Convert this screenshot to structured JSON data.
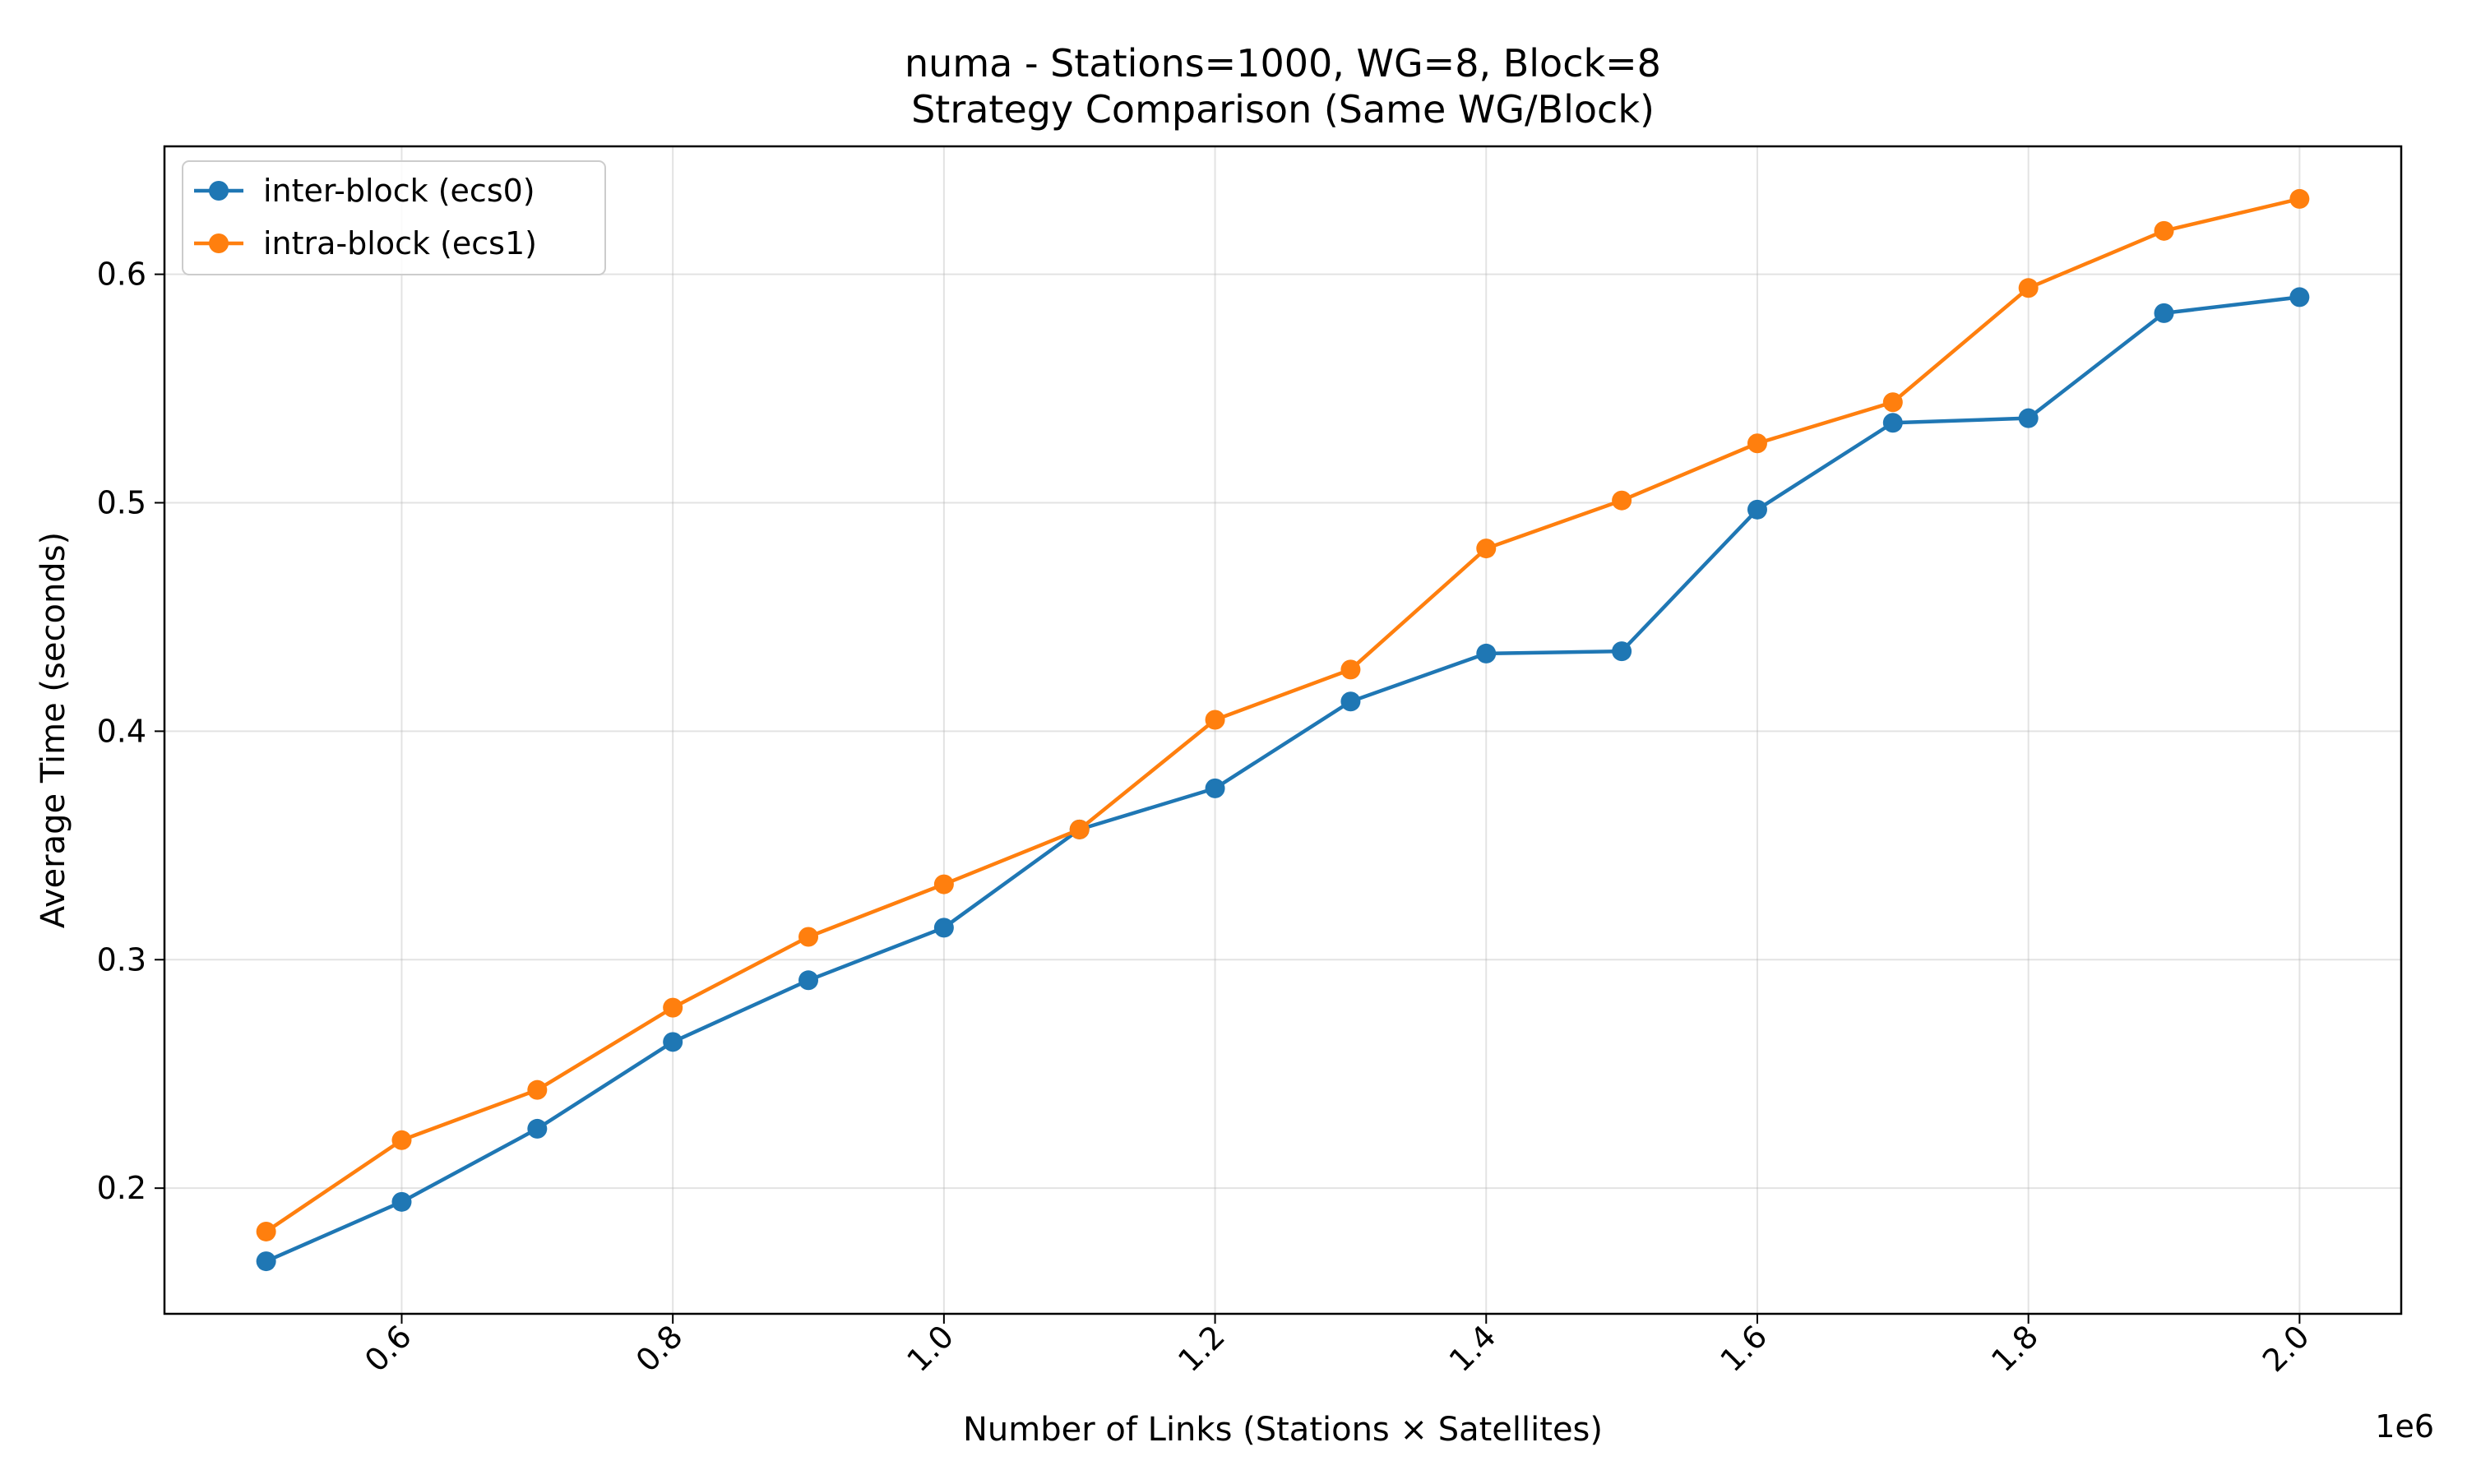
{
  "chart_data": {
    "type": "line",
    "title": "numa - Stations=1000, WG=8, Block=8",
    "subtitle": "Strategy Comparison (Same WG/Block)",
    "xlabel": "Number of Links (Stations × Satellites)",
    "ylabel": "Average Time (seconds)",
    "x_offset_text": "1e6",
    "xlim": [
      0.425,
      2.075
    ],
    "ylim": [
      0.145,
      0.656
    ],
    "x_ticks": [
      0.6,
      0.8,
      1.0,
      1.2,
      1.4,
      1.6,
      1.8,
      2.0
    ],
    "x_tick_labels": [
      "0.6",
      "0.8",
      "1.0",
      "1.2",
      "1.4",
      "1.6",
      "1.8",
      "2.0"
    ],
    "y_ticks": [
      0.2,
      0.3,
      0.4,
      0.5,
      0.6
    ],
    "y_tick_labels": [
      "0.2",
      "0.3",
      "0.4",
      "0.5",
      "0.6"
    ],
    "grid": true,
    "legend_position": "top-left",
    "x": [
      0.5,
      0.6,
      0.7,
      0.8,
      0.9,
      1.0,
      1.1,
      1.2,
      1.3,
      1.4,
      1.5,
      1.6,
      1.7,
      1.8,
      1.9,
      2.0
    ],
    "series": [
      {
        "name": "inter-block (ecs0)",
        "color": "#1f77b4",
        "values": [
          0.168,
          0.194,
          0.226,
          0.264,
          0.291,
          0.314,
          0.357,
          0.375,
          0.413,
          0.434,
          0.435,
          0.497,
          0.535,
          0.537,
          0.583,
          0.59
        ]
      },
      {
        "name": "intra-block (ecs1)",
        "color": "#ff7f0e",
        "values": [
          0.181,
          0.221,
          0.243,
          0.279,
          0.31,
          0.333,
          0.357,
          0.405,
          0.427,
          0.48,
          0.501,
          0.526,
          0.544,
          0.594,
          0.619,
          0.633
        ]
      }
    ]
  }
}
